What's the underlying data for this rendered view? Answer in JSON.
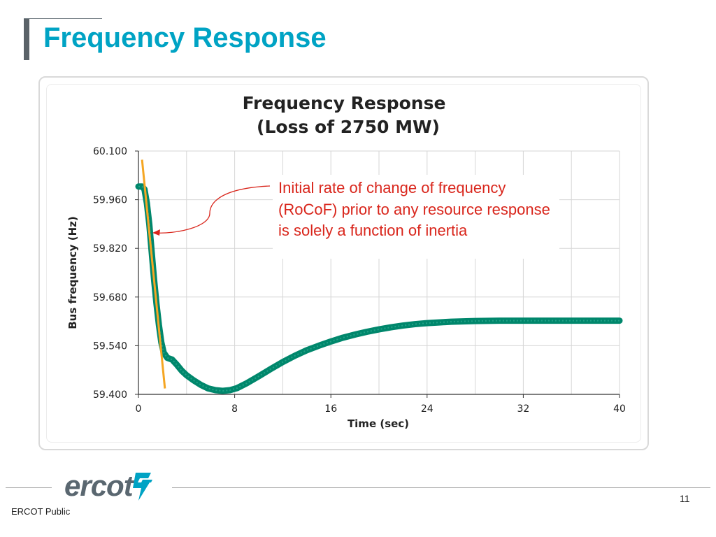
{
  "slide": {
    "title": "Frequency Response",
    "page_number": "11",
    "classification": "ERCOT Public",
    "logo_text": "ercot"
  },
  "annotation": {
    "text": "Initial rate of change of frequency (RoCoF) prior to any resource response is solely a function of inertia"
  },
  "colors": {
    "title": "#00a3c4",
    "series": "#00876c",
    "tangent": "#f5a623",
    "annotation": "#d9261c"
  },
  "chart_data": {
    "type": "line",
    "title": [
      "Frequency Response",
      "(Loss of 2750 MW)"
    ],
    "xlabel": "Time (sec)",
    "ylabel": "Bus frequency (Hz)",
    "xlim": [
      0,
      40
    ],
    "ylim": [
      59.4,
      60.1
    ],
    "x_ticks": [
      0,
      8,
      16,
      24,
      32,
      40
    ],
    "x_tick_labels": [
      "0",
      "8",
      "16",
      "24",
      "32",
      "40"
    ],
    "y_ticks": [
      59.4,
      59.54,
      59.68,
      59.82,
      59.96,
      60.1
    ],
    "y_tick_labels": [
      "59.400",
      "59.540",
      "59.680",
      "59.820",
      "59.960",
      "60.100"
    ],
    "grid": true,
    "series": [
      {
        "name": "Bus frequency",
        "x": [
          0,
          0.3,
          0.5,
          0.7,
          0.9,
          1.1,
          1.3,
          1.5,
          1.7,
          1.9,
          2.1,
          2.4,
          2.8,
          3.2,
          3.6,
          4.0,
          4.6,
          5.2,
          5.8,
          6.4,
          7.0,
          7.6,
          8.2,
          9,
          10,
          11,
          12,
          13,
          14,
          15,
          16,
          17,
          18,
          19,
          20,
          21,
          22,
          23,
          24,
          25,
          26,
          27,
          28,
          30,
          32,
          34,
          36,
          38,
          40
        ],
        "y": [
          59.998,
          59.998,
          59.99,
          59.95,
          59.89,
          59.81,
          59.73,
          59.66,
          59.6,
          59.55,
          59.52,
          59.505,
          59.5,
          59.485,
          59.468,
          59.455,
          59.44,
          59.427,
          59.417,
          59.412,
          59.41,
          59.412,
          59.418,
          59.432,
          59.452,
          59.473,
          59.493,
          59.511,
          59.527,
          59.54,
          59.552,
          59.563,
          59.572,
          59.58,
          59.587,
          59.593,
          59.598,
          59.602,
          59.605,
          59.607,
          59.609,
          59.61,
          59.611,
          59.612,
          59.612,
          59.612,
          59.612,
          59.612,
          59.612
        ]
      }
    ],
    "tangent_line": {
      "name": "Initial RoCoF",
      "x": [
        0.3,
        2.2
      ],
      "y": [
        60.075,
        59.417
      ]
    }
  }
}
